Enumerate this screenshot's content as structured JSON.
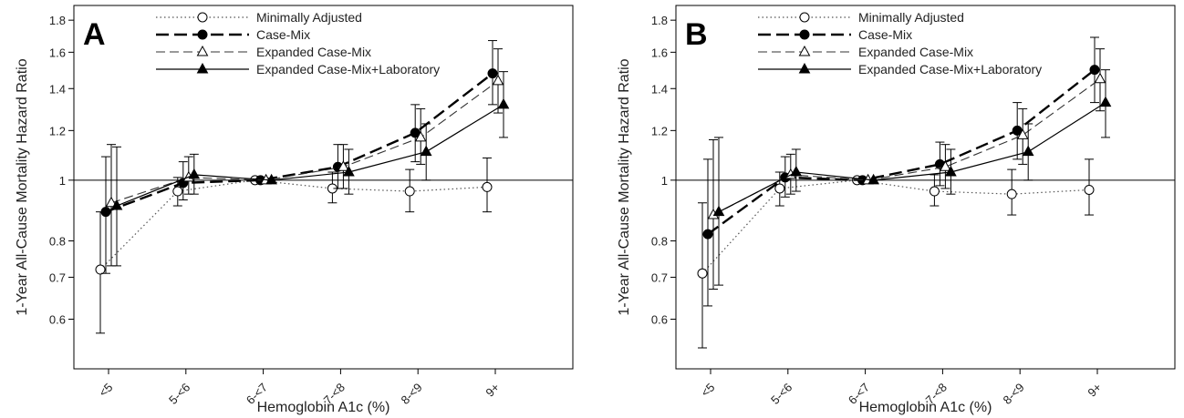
{
  "chart_data": [
    {
      "type": "line",
      "panel_label": "A",
      "xlabel": "Hemoglobin A1c (%)",
      "ylabel": "1-Year All-Cause Mortality Hazard Ratio",
      "y_scale": "log",
      "ylim": [
        0.5,
        1.9
      ],
      "y_ticks": [
        0.6,
        0.7,
        0.8,
        1,
        1.2,
        1.4,
        1.6,
        1.8
      ],
      "y_tick_labels": [
        "0.6",
        "0.7",
        "0.8",
        "1",
        "1.2",
        "1.4",
        "1.6",
        "1.8"
      ],
      "categories": [
        "<5",
        "5-<6",
        "6-<7",
        "7-<8",
        "8-<9",
        "9+"
      ],
      "reference_line": 1,
      "legend_position": "top-center",
      "series": [
        {
          "name": "Minimally Adjusted",
          "style": "dotted",
          "marker": "open-circle",
          "values": [
            0.72,
            0.96,
            1.0,
            0.97,
            0.96,
            0.975
          ],
          "lower": [
            0.57,
            0.91,
            1.0,
            0.92,
            0.89,
            0.89
          ],
          "upper": [
            0.89,
            1.01,
            1.0,
            1.03,
            1.04,
            1.085
          ]
        },
        {
          "name": "Case-Mix",
          "style": "long-dash",
          "marker": "filled-circle",
          "values": [
            0.89,
            0.99,
            1.0,
            1.05,
            1.19,
            1.48
          ],
          "lower": [
            0.71,
            0.93,
            1.0,
            0.97,
            1.07,
            1.32
          ],
          "upper": [
            1.09,
            1.07,
            1.0,
            1.14,
            1.32,
            1.67
          ]
        },
        {
          "name": "Expanded Case-Mix",
          "style": "dash",
          "marker": "open-triangle",
          "values": [
            0.92,
            1.01,
            1.0,
            1.05,
            1.17,
            1.44
          ],
          "lower": [
            0.73,
            0.95,
            1.0,
            0.97,
            1.06,
            1.28
          ],
          "upper": [
            1.14,
            1.09,
            1.0,
            1.14,
            1.3,
            1.62
          ]
        },
        {
          "name": "Expanded Case-Mix+Laboratory",
          "style": "solid",
          "marker": "filled-triangle",
          "values": [
            0.91,
            1.02,
            1.0,
            1.03,
            1.11,
            1.32
          ],
          "lower": [
            0.73,
            0.95,
            1.0,
            0.95,
            1.0,
            1.17
          ],
          "upper": [
            1.13,
            1.1,
            1.0,
            1.12,
            1.23,
            1.49
          ]
        }
      ]
    },
    {
      "type": "line",
      "panel_label": "B",
      "xlabel": "Hemoglobin A1c (%)",
      "ylabel": "1-Year All-Cause Mortality Hazard Ratio",
      "y_scale": "log",
      "ylim": [
        0.5,
        1.9
      ],
      "y_ticks": [
        0.6,
        0.7,
        0.8,
        1,
        1.2,
        1.4,
        1.6,
        1.8
      ],
      "y_tick_labels": [
        "0.6",
        "0.7",
        "0.8",
        "1",
        "1.2",
        "1.4",
        "1.6",
        "1.8"
      ],
      "categories": [
        "<5",
        "5-<6",
        "6-<7",
        "7-<8",
        "8-<9",
        "9+"
      ],
      "reference_line": 1,
      "legend_position": "top-center",
      "series": [
        {
          "name": "Minimally Adjusted",
          "style": "dotted",
          "marker": "open-circle",
          "values": [
            0.71,
            0.97,
            1.0,
            0.96,
            0.95,
            0.965
          ],
          "lower": [
            0.54,
            0.91,
            1.0,
            0.91,
            0.88,
            0.88
          ],
          "upper": [
            0.92,
            1.03,
            1.0,
            1.02,
            1.04,
            1.08
          ]
        },
        {
          "name": "Case-Mix",
          "style": "long-dash",
          "marker": "filled-circle",
          "values": [
            0.82,
            1.01,
            1.0,
            1.06,
            1.2,
            1.5
          ],
          "lower": [
            0.63,
            0.94,
            1.0,
            0.98,
            1.08,
            1.33
          ],
          "upper": [
            1.08,
            1.09,
            1.0,
            1.15,
            1.33,
            1.69
          ]
        },
        {
          "name": "Expanded Case-Mix",
          "style": "dash",
          "marker": "open-triangle",
          "values": [
            0.88,
            1.02,
            1.0,
            1.05,
            1.18,
            1.45
          ],
          "lower": [
            0.67,
            0.95,
            1.0,
            0.97,
            1.06,
            1.29
          ],
          "upper": [
            1.16,
            1.1,
            1.0,
            1.14,
            1.3,
            1.62
          ]
        },
        {
          "name": "Expanded Case-Mix+Laboratory",
          "style": "solid",
          "marker": "filled-triangle",
          "values": [
            0.89,
            1.03,
            1.0,
            1.03,
            1.11,
            1.33
          ],
          "lower": [
            0.68,
            0.96,
            1.0,
            0.95,
            1.0,
            1.17
          ],
          "upper": [
            1.17,
            1.12,
            1.0,
            1.12,
            1.23,
            1.5
          ]
        }
      ]
    }
  ]
}
